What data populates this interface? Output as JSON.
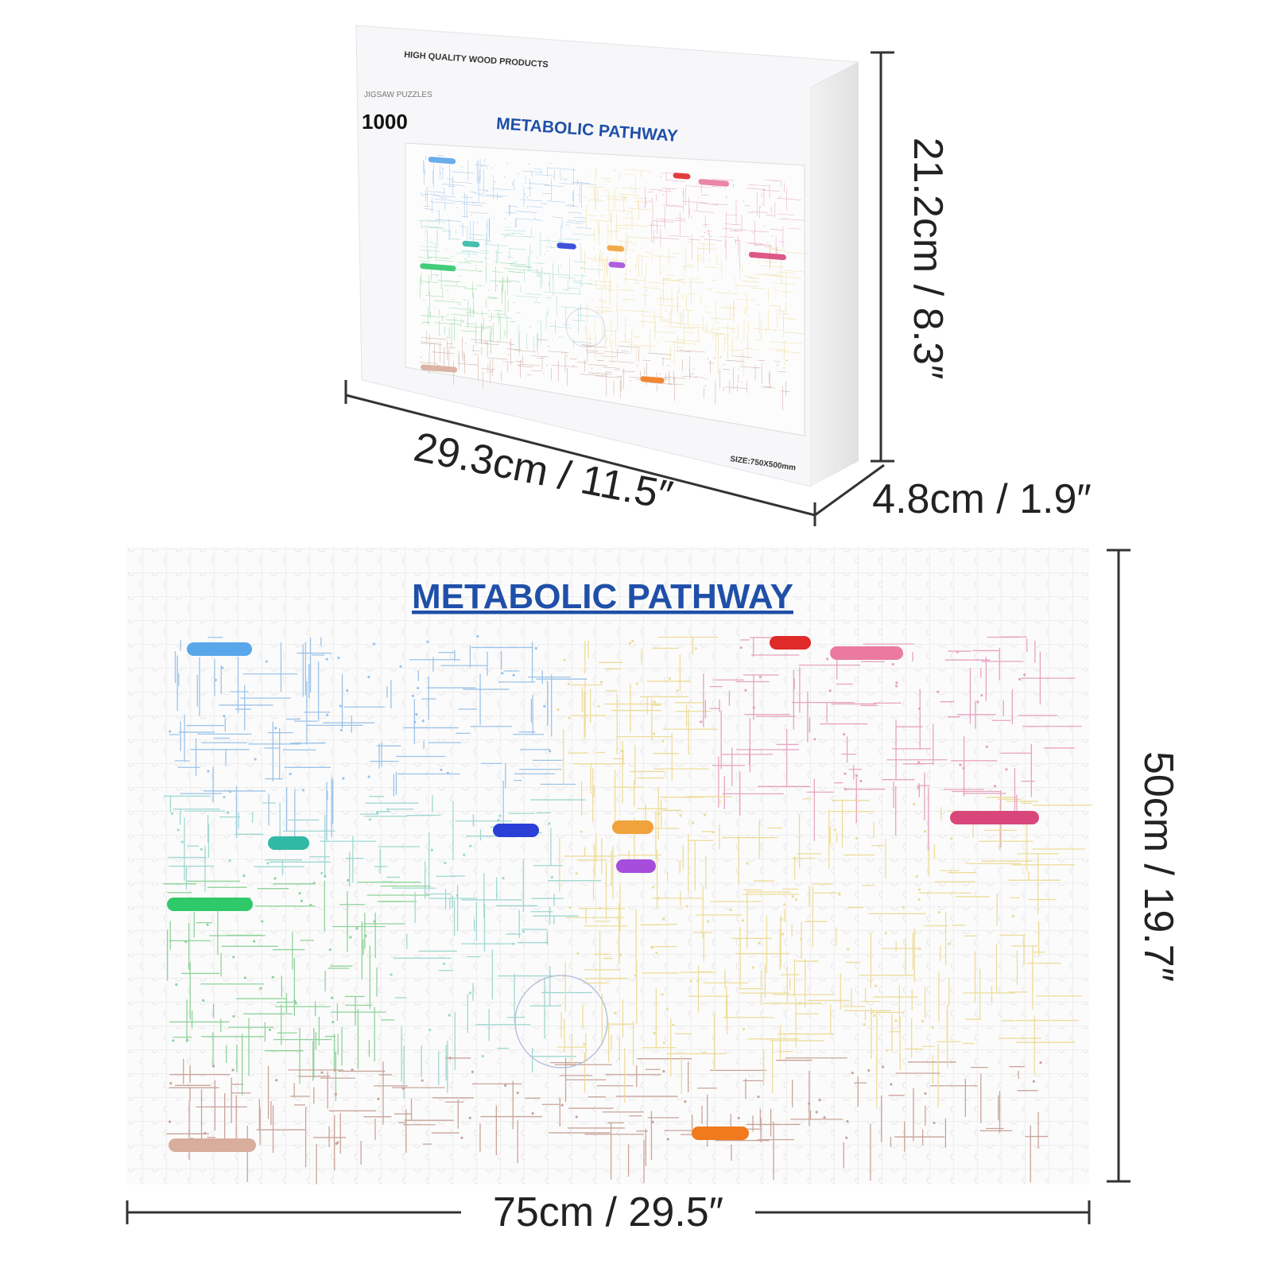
{
  "box": {
    "brand": "HIGH QUALITY WOOD PRODUCTS",
    "label": "JIGSAW PUZZLES",
    "pieces": "1000",
    "title": "METABOLIC PATHWAY",
    "size": "SIZE:750X500mm"
  },
  "box_dimensions": {
    "width": "29.3cm / 11.5″",
    "height": "21.2cm / 8.3″",
    "depth": "4.8cm / 1.9″"
  },
  "puzzle": {
    "title": "METABOLIC PATHWAY",
    "height": "50cm / 19.7″",
    "width": "75cm / 29.5″"
  }
}
